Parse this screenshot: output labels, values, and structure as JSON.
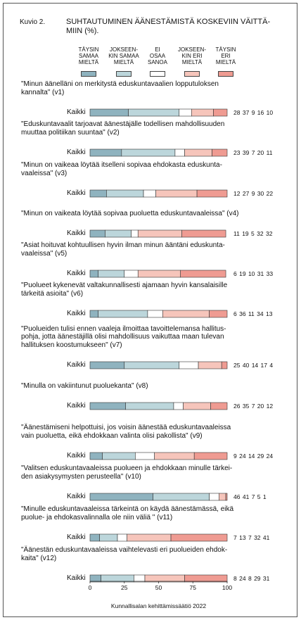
{
  "figure_label": "Kuvio 2.",
  "title": "SUHTAUTUMINEN ÄÄNESTÄMISTÄ KOSKEVIIN VÄITTÄ-MIIN (%).",
  "source": "Kunnallisalan kehittämissäätiö 2022",
  "colors": [
    "#8fb3bf",
    "#bcd6db",
    "#ffffff",
    "#f6c5bb",
    "#ef9b92"
  ],
  "chart_data": {
    "type": "bar",
    "stacked": true,
    "orientation": "horizontal",
    "xlim": [
      0,
      100
    ],
    "x_ticks": [
      0,
      25,
      50,
      75,
      100
    ],
    "series": [
      {
        "name": "TÄYSIN SAMAA MIELTÄ"
      },
      {
        "name": "JOKSEENKIN SAMAA MIELTÄ"
      },
      {
        "name": "EI OSAA SANOA"
      },
      {
        "name": "JOKSEENKIN ERI MIELTÄ"
      },
      {
        "name": "TÄYSIN ERI MIELTÄ"
      }
    ],
    "legend_labels": [
      [
        "TÄYSIN",
        "SAMAA",
        "MIELTÄ"
      ],
      [
        "JOKSEEN-",
        "KIN SAMAA",
        "MIELTÄ"
      ],
      [
        "EI",
        "OSAA",
        "SANOA"
      ],
      [
        "JOKSEEN-",
        "KIN ERI",
        "MIELTÄ"
      ],
      [
        "TÄYSIN",
        "ERI",
        "MIELTÄ"
      ]
    ],
    "row_label": "Kaikki",
    "items": [
      {
        "question": [
          "\"Minun äänelläni on merkitystä eduskuntavaalien lopputuloksen",
          "kannalta\" (v1)"
        ],
        "values": [
          28,
          37,
          9,
          16,
          10
        ]
      },
      {
        "question": [
          "\"Eduskuntavaalit tarjoavat äänestäjälle todellisen mahdollisuuden",
          "muuttaa politiikan suuntaa\" (v2)"
        ],
        "values": [
          23,
          39,
          7,
          20,
          11
        ]
      },
      {
        "question": [
          "\"Minun on vaikeaa löytää itselleni sopivaa ehdokasta eduskunta-",
          "vaaleissa\" (v3)"
        ],
        "values": [
          12,
          27,
          9,
          30,
          22
        ]
      },
      {
        "question": [
          "\"Minun on vaikeata löytää sopivaa puoluetta eduskuntavaaleissa\" (v4)"
        ],
        "values": [
          11,
          19,
          5,
          32,
          32
        ]
      },
      {
        "question": [
          "\"Asiat hoituvat kohtuullisen hyvin ilman minun ääntäni eduskunta-",
          "vaaleissa\" (v5)"
        ],
        "values": [
          6,
          19,
          10,
          31,
          33
        ]
      },
      {
        "question": [
          "\"Puolueet kykenevät valtakunnallisesti ajamaan hyvin kansalaisille",
          "tärkeitä asioita\" (v6)"
        ],
        "values": [
          6,
          36,
          11,
          34,
          13
        ]
      },
      {
        "question": [
          "\"Puolueiden tulisi ennen vaaleja ilmoittaa tavoittelemansa hallitus-",
          "pohja, jotta äänestäjillä olisi mahdollisuus vaikuttaa maan tulevan",
          "hallituksen koostumukseen\" (v7)"
        ],
        "values": [
          25,
          40,
          14,
          17,
          4
        ]
      },
      {
        "question": [
          "\"Minulla on vakiintunut puoluekanta\" (v8)"
        ],
        "values": [
          26,
          35,
          7,
          20,
          12
        ]
      },
      {
        "question": [
          "\"Äänestämiseni helpottuisi, jos voisin äänestää eduskuntavaaleissa",
          "vain puoluetta, eikä ehdokkaan valinta olisi pakollista\" (v9)"
        ],
        "values": [
          9,
          24,
          14,
          29,
          24
        ]
      },
      {
        "question": [
          "\"Valitsen eduskuntavaaleissa puolueen ja ehdokkaan minulle tärkei-",
          "den asiakysymysten perusteella\" (v10)"
        ],
        "values": [
          46,
          41,
          7,
          5,
          1
        ]
      },
      {
        "question": [
          "\"Minulle eduskuntavaaleissa tärkeintä on käydä äänestämässä, eikä",
          "puolue- ja ehdokasvalinnalla ole niin väliä \" (v11)"
        ],
        "values": [
          7,
          13,
          7,
          32,
          41
        ]
      },
      {
        "question": [
          "\"Äänestän eduskuntavaaleissa vaihtelevasti eri puolueiden ehdok-",
          "kaita\" (v12)"
        ],
        "values": [
          8,
          24,
          8,
          29,
          31
        ]
      }
    ]
  }
}
